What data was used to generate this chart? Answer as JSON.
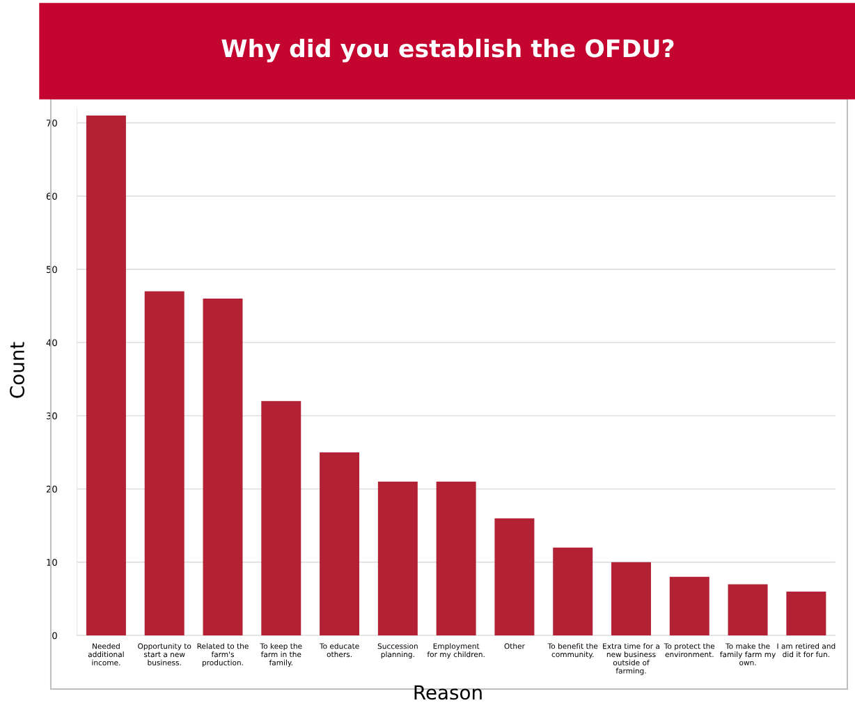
{
  "chart_data": {
    "type": "bar",
    "title": "Why did you establish the OFDU?",
    "xlabel": "Reason",
    "ylabel": "Count",
    "categories": [
      "Needed\nadditional\nincome.",
      "Opportunity to\nstart a new\nbusiness.",
      "Related to the\nfarm's\nproduction.",
      "To keep the\nfarm in the\nfamily.",
      "To educate\nothers.",
      "Succession\nplanning.",
      "Employment\nfor my children.",
      "Other",
      "To benefit the\ncommunity.",
      "Extra time for a\nnew business\noutside of\nfarming.",
      "To protect the\nenvironment.",
      "To make the\nfamily farm my\nown.",
      "I am retired and\ndid it for fun."
    ],
    "values": [
      71,
      47,
      46,
      32,
      25,
      21,
      21,
      16,
      12,
      10,
      8,
      7,
      6
    ],
    "color": "#b22234",
    "ylim": [
      0,
      72
    ],
    "yticks": [
      0,
      10,
      20,
      30,
      40,
      50,
      60,
      70
    ],
    "grid": "y",
    "legend": false
  }
}
